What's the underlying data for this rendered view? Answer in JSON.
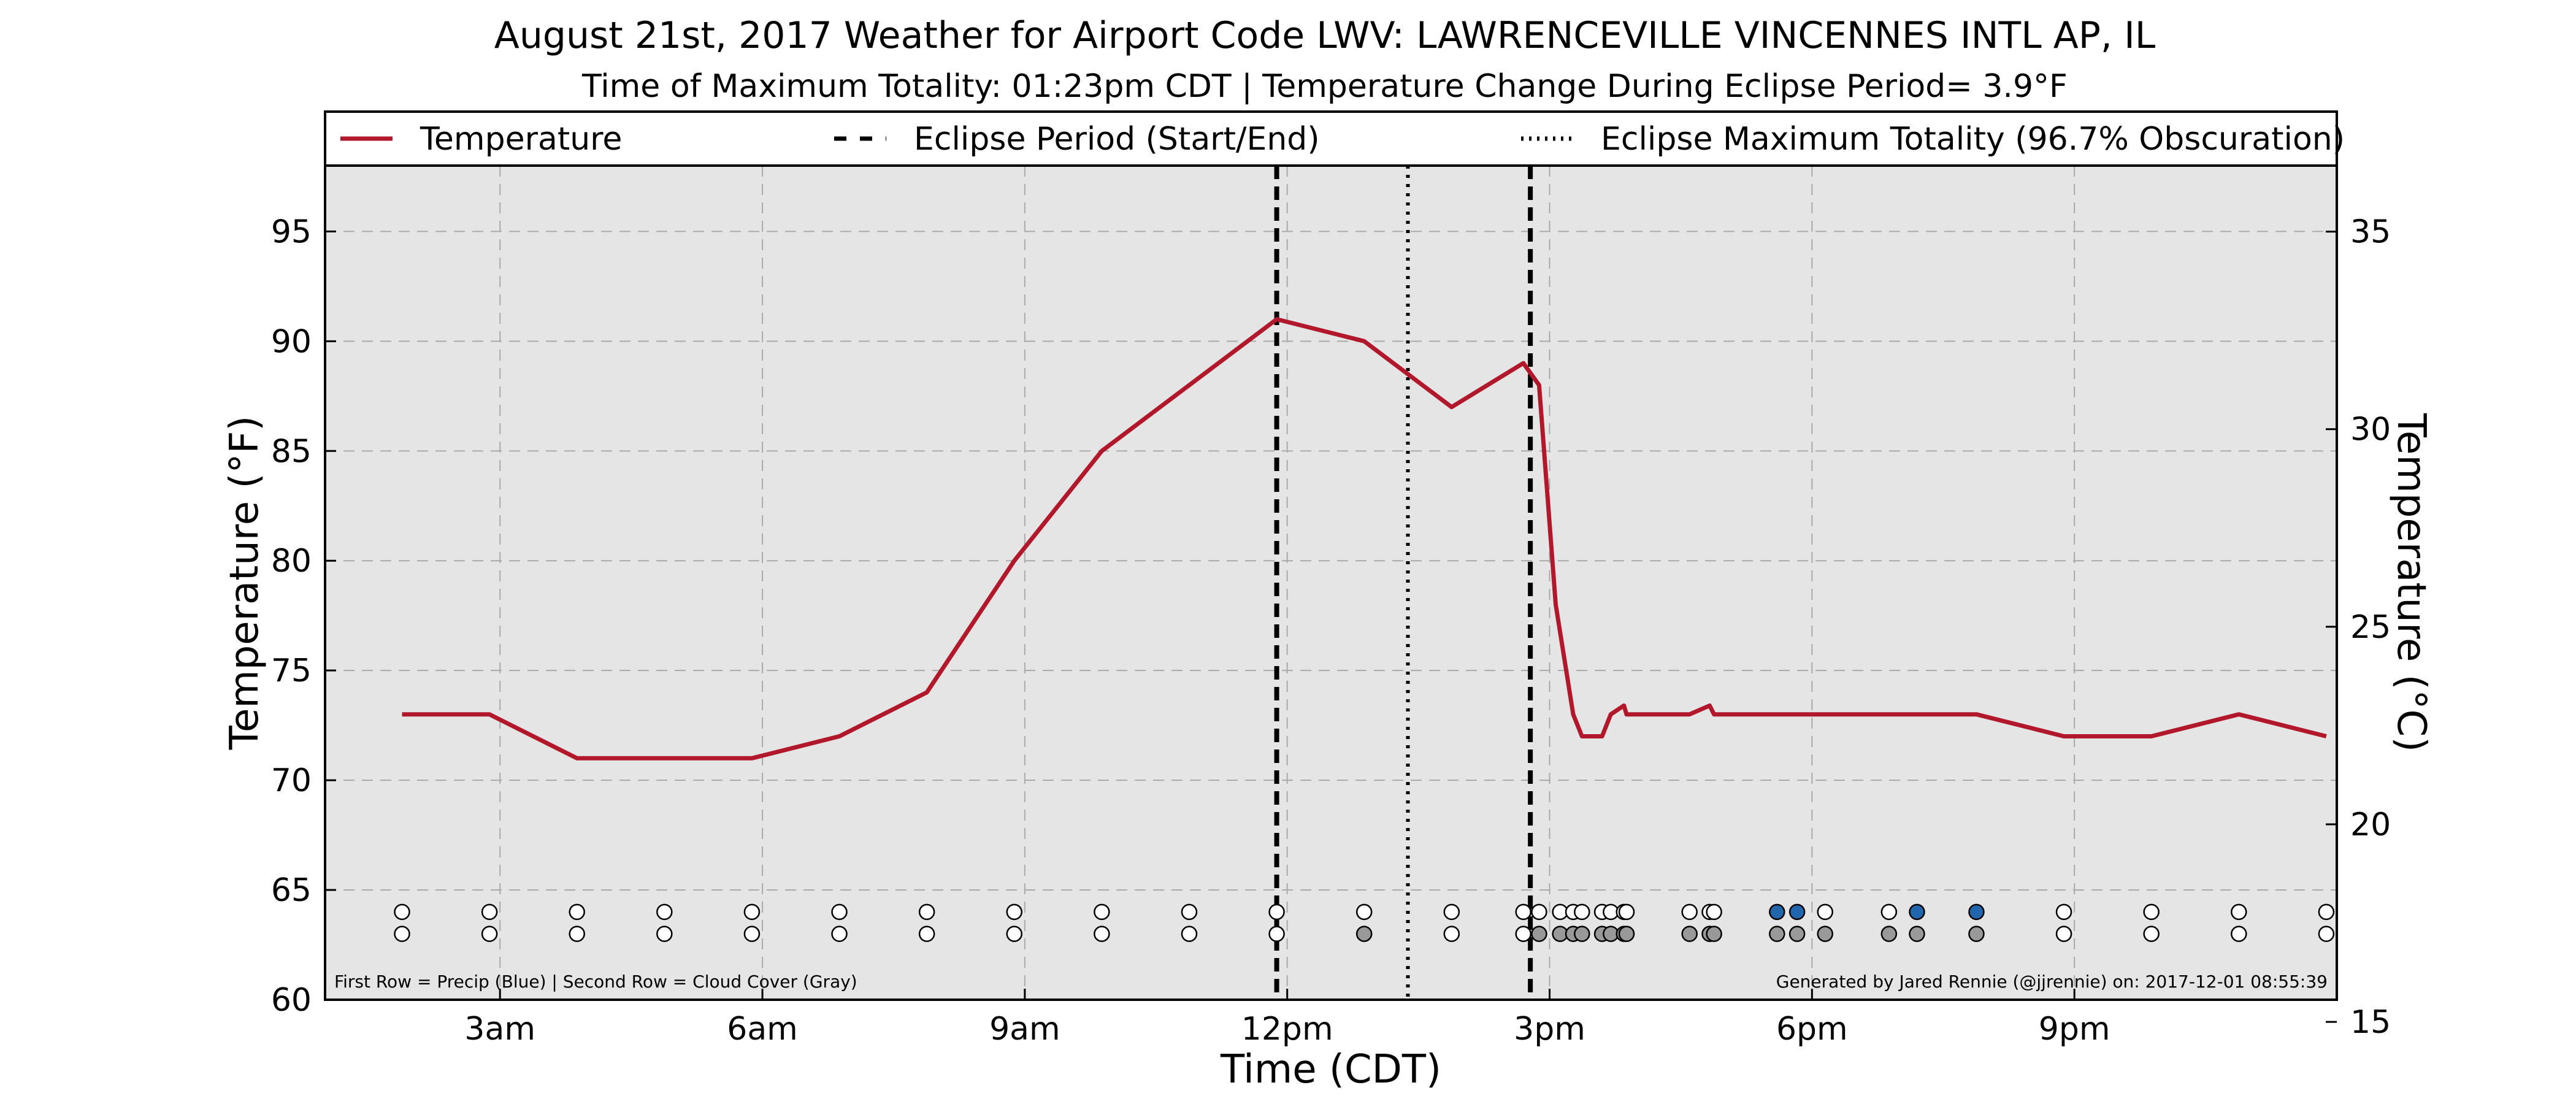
{
  "chart_data": {
    "type": "line",
    "title": "August 21st, 2017 Weather for Airport Code LWV: LAWRENCEVILLE VINCENNES INTL AP, IL",
    "subtitle": "Time of Maximum Totality: 01:23pm CDT | Temperature Change During Eclipse Period= 3.9°F",
    "xlabel": "Time (CDT)",
    "ylabel": "Temperature (°F)",
    "ylabel_right": "Temperature (°C)",
    "xlim": [
      1.0,
      24.0
    ],
    "ylim": [
      60,
      98
    ],
    "ylim_right": [
      15.56,
      36.67
    ],
    "grid": true,
    "legend_position": "top",
    "x_ticks": [
      {
        "x": 3,
        "label": "3am"
      },
      {
        "x": 6,
        "label": "6am"
      },
      {
        "x": 9,
        "label": "9am"
      },
      {
        "x": 12,
        "label": "12pm"
      },
      {
        "x": 15,
        "label": "3pm"
      },
      {
        "x": 18,
        "label": "6pm"
      },
      {
        "x": 21,
        "label": "9pm"
      }
    ],
    "y_ticks": [
      60,
      65,
      70,
      75,
      80,
      85,
      90,
      95
    ],
    "y_ticks_right": [
      15,
      20,
      25,
      30,
      35
    ],
    "legend": [
      {
        "label": "Temperature",
        "style": "solid",
        "color": "#b2182b"
      },
      {
        "label": "Eclipse Period (Start/End)",
        "style": "dashed",
        "color": "#000000"
      },
      {
        "label": "Eclipse Maximum Totality (96.7% Obscuration)",
        "style": "dotted",
        "color": "#000000"
      }
    ],
    "series": [
      {
        "name": "Temperature",
        "color": "#b2182b",
        "points": [
          [
            1.88,
            73
          ],
          [
            2.88,
            73
          ],
          [
            3.88,
            71
          ],
          [
            4.88,
            71
          ],
          [
            5.88,
            71
          ],
          [
            6.88,
            72
          ],
          [
            7.88,
            74
          ],
          [
            8.88,
            80
          ],
          [
            9.88,
            85
          ],
          [
            10.88,
            88
          ],
          [
            11.88,
            91
          ],
          [
            12.88,
            90
          ],
          [
            13.88,
            87
          ],
          [
            14.7,
            89
          ],
          [
            14.88,
            88
          ],
          [
            15.07,
            78
          ],
          [
            15.27,
            73
          ],
          [
            15.37,
            72
          ],
          [
            15.6,
            72
          ],
          [
            15.7,
            73
          ],
          [
            15.85,
            73.4
          ],
          [
            15.88,
            73
          ],
          [
            16.6,
            73
          ],
          [
            16.83,
            73.4
          ],
          [
            16.88,
            73
          ],
          [
            17.88,
            73
          ],
          [
            18.88,
            73
          ],
          [
            19.88,
            73
          ],
          [
            20.88,
            72
          ],
          [
            21.88,
            72
          ],
          [
            22.88,
            73
          ],
          [
            23.88,
            72
          ]
        ]
      }
    ],
    "vertical_lines": [
      {
        "x": 11.88,
        "style": "dashed",
        "label": "Eclipse Period (Start/End)"
      },
      {
        "x": 14.78,
        "style": "dashed",
        "label": "Eclipse Period (Start/End)"
      },
      {
        "x": 13.38,
        "style": "dotted",
        "label": "Eclipse Maximum Totality (96.7% Obscuration)"
      }
    ],
    "precip_row": {
      "y": 64,
      "points": [
        {
          "x": 1.88,
          "precip": false
        },
        {
          "x": 2.88,
          "precip": false
        },
        {
          "x": 3.88,
          "precip": false
        },
        {
          "x": 4.88,
          "precip": false
        },
        {
          "x": 5.88,
          "precip": false
        },
        {
          "x": 6.88,
          "precip": false
        },
        {
          "x": 7.88,
          "precip": false
        },
        {
          "x": 8.88,
          "precip": false
        },
        {
          "x": 9.88,
          "precip": false
        },
        {
          "x": 10.88,
          "precip": false
        },
        {
          "x": 11.88,
          "precip": false
        },
        {
          "x": 12.88,
          "precip": false
        },
        {
          "x": 13.88,
          "precip": false
        },
        {
          "x": 14.7,
          "precip": false
        },
        {
          "x": 14.88,
          "precip": false
        },
        {
          "x": 15.12,
          "precip": false
        },
        {
          "x": 15.27,
          "precip": false
        },
        {
          "x": 15.37,
          "precip": false
        },
        {
          "x": 15.6,
          "precip": false
        },
        {
          "x": 15.7,
          "precip": false
        },
        {
          "x": 15.85,
          "precip": false
        },
        {
          "x": 15.88,
          "precip": false
        },
        {
          "x": 16.6,
          "precip": false
        },
        {
          "x": 16.83,
          "precip": false
        },
        {
          "x": 16.88,
          "precip": false
        },
        {
          "x": 17.6,
          "precip": true
        },
        {
          "x": 17.83,
          "precip": true
        },
        {
          "x": 18.15,
          "precip": false
        },
        {
          "x": 18.88,
          "precip": false
        },
        {
          "x": 19.2,
          "precip": true
        },
        {
          "x": 19.88,
          "precip": true
        },
        {
          "x": 20.88,
          "precip": false
        },
        {
          "x": 21.88,
          "precip": false
        },
        {
          "x": 22.88,
          "precip": false
        },
        {
          "x": 23.88,
          "precip": false
        }
      ]
    },
    "cloud_row": {
      "y": 63,
      "points": [
        {
          "x": 1.88,
          "cloud": false
        },
        {
          "x": 2.88,
          "cloud": false
        },
        {
          "x": 3.88,
          "cloud": false
        },
        {
          "x": 4.88,
          "cloud": false
        },
        {
          "x": 5.88,
          "cloud": false
        },
        {
          "x": 6.88,
          "cloud": false
        },
        {
          "x": 7.88,
          "cloud": false
        },
        {
          "x": 8.88,
          "cloud": false
        },
        {
          "x": 9.88,
          "cloud": false
        },
        {
          "x": 10.88,
          "cloud": false
        },
        {
          "x": 11.88,
          "cloud": false
        },
        {
          "x": 12.88,
          "cloud": true
        },
        {
          "x": 13.88,
          "cloud": false
        },
        {
          "x": 14.7,
          "cloud": false
        },
        {
          "x": 14.88,
          "cloud": true
        },
        {
          "x": 15.12,
          "cloud": true
        },
        {
          "x": 15.27,
          "cloud": true
        },
        {
          "x": 15.37,
          "cloud": true
        },
        {
          "x": 15.6,
          "cloud": true
        },
        {
          "x": 15.7,
          "cloud": true
        },
        {
          "x": 15.85,
          "cloud": true
        },
        {
          "x": 15.88,
          "cloud": true
        },
        {
          "x": 16.6,
          "cloud": true
        },
        {
          "x": 16.83,
          "cloud": true
        },
        {
          "x": 16.88,
          "cloud": true
        },
        {
          "x": 17.6,
          "cloud": true
        },
        {
          "x": 17.83,
          "cloud": true
        },
        {
          "x": 18.15,
          "cloud": true
        },
        {
          "x": 18.88,
          "cloud": true
        },
        {
          "x": 19.2,
          "cloud": true
        },
        {
          "x": 19.88,
          "cloud": true
        },
        {
          "x": 20.88,
          "cloud": false
        },
        {
          "x": 21.88,
          "cloud": false
        },
        {
          "x": 22.88,
          "cloud": false
        },
        {
          "x": 23.88,
          "cloud": false
        }
      ]
    },
    "footnote_left": "First Row = Precip (Blue) | Second Row = Cloud Cover (Gray)",
    "footnote_right": "Generated by Jared Rennie (@jjrennie) on: 2017-12-01 08:55:39",
    "colors": {
      "plot_background": "#e5e5e5",
      "temperature": "#b2182b",
      "precip_fill": "#2166ac",
      "cloud_fill": "#999999",
      "empty_fill": "#ffffff",
      "grid": "#aaaaaa"
    }
  }
}
